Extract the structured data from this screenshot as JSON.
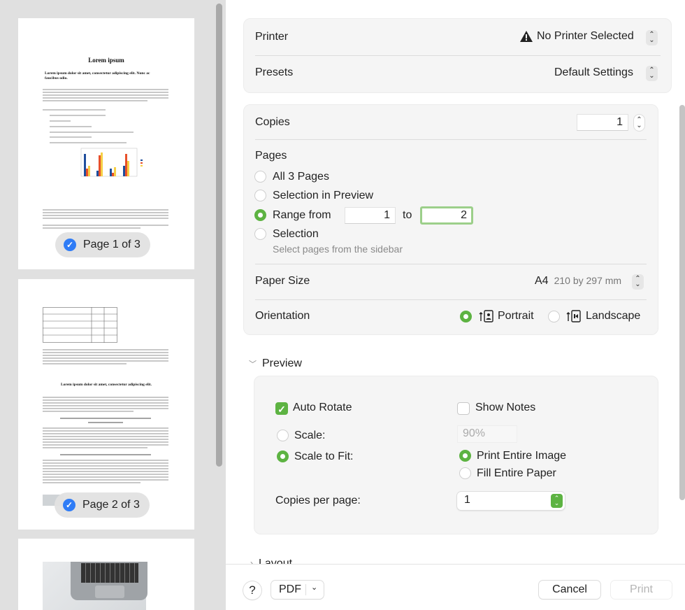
{
  "sidebar": {
    "pages": [
      {
        "badge": "Page 1 of 3",
        "title": "Lorem ipsum",
        "heading": "Lorem ipsum dolor sit amet, consectetur adipiscing elit. Nunc ac faucibus odio.",
        "selected": true
      },
      {
        "badge": "Page 2 of 3",
        "heading": "Lorem ipsum dolor sit amet, consectetur adipiscing elit.",
        "selected": true
      },
      {
        "selected": false
      }
    ]
  },
  "printer": {
    "label": "Printer",
    "value": "No Printer Selected",
    "icon": "warning-icon"
  },
  "presets": {
    "label": "Presets",
    "value": "Default Settings"
  },
  "copies": {
    "label": "Copies",
    "value": "1"
  },
  "pages": {
    "label": "Pages",
    "options": [
      "All 3 Pages",
      "Selection in Preview",
      "Range from",
      "Selection"
    ],
    "selected": "Range from",
    "range_from": "1",
    "range_to_label": "to",
    "range_to": "2",
    "selection_hint": "Select pages from the sidebar"
  },
  "paper_size": {
    "label": "Paper Size",
    "value": "A4",
    "detail": "210 by 297 mm"
  },
  "orientation": {
    "label": "Orientation",
    "portrait": "Portrait",
    "landscape": "Landscape",
    "selected": "Portrait"
  },
  "preview": {
    "header": "Preview",
    "auto_rotate": {
      "label": "Auto Rotate",
      "checked": true
    },
    "show_notes": {
      "label": "Show Notes",
      "checked": false
    },
    "scale": {
      "label": "Scale:",
      "value": "90%"
    },
    "scale_to_fit": {
      "label": "Scale to Fit:",
      "selected": true
    },
    "print_entire_image": "Print Entire Image",
    "fill_entire_paper": "Fill Entire Paper",
    "copies_per_page": {
      "label": "Copies per page:",
      "value": "1"
    }
  },
  "layout": {
    "header": "Layout"
  },
  "footer": {
    "help": "?",
    "pdf": "PDF",
    "cancel": "Cancel",
    "print": "Print"
  },
  "colors": {
    "accent": "#5db342",
    "badge_check": "#2f7cf6"
  }
}
